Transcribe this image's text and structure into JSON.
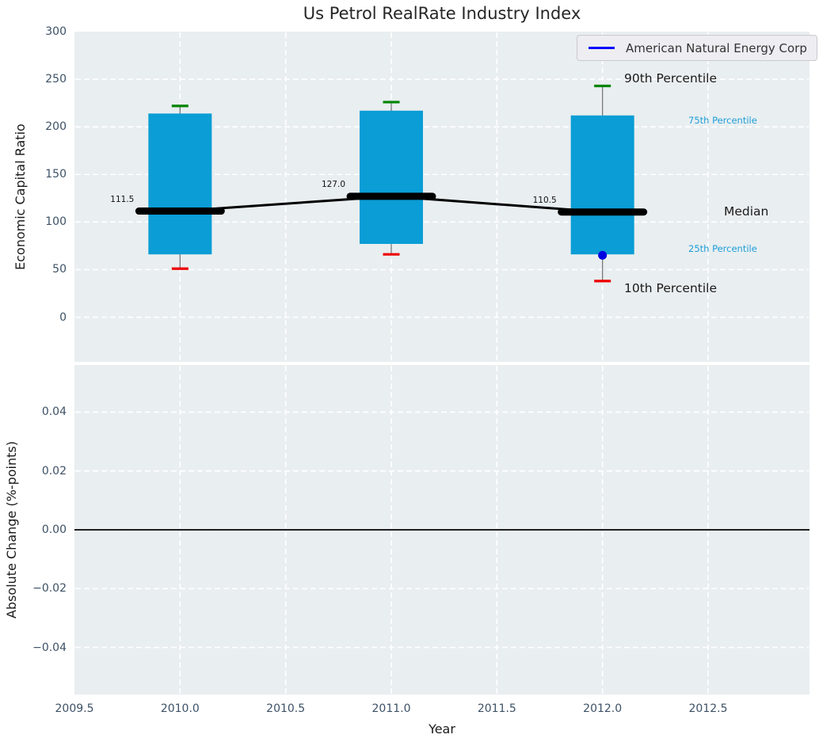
{
  "title": "Us Petrol RealRate Industry Index",
  "legend": {
    "label": "American Natural Energy Corp",
    "line_color": "#0000ff"
  },
  "annotations": {
    "p90_label": "90th Percentile",
    "p75_label": "75th Percentile",
    "median_label": "Median",
    "p25_label": "25th Percentile",
    "p10_label": "10th Percentile"
  },
  "colors": {
    "axes_background": "#e9eef0",
    "grid": "#ffffff",
    "box_fill": "#0a9dd6",
    "whisker": "#787878",
    "cap_high": "#008500",
    "cap_low": "#ee0000",
    "median_line": "#000000",
    "company_point": "#0000e0",
    "tick_label": "#3d5166",
    "accent_text": "#1d9fd8"
  },
  "chart_data": [
    {
      "type": "box",
      "title": "Us Petrol RealRate Industry Index",
      "xlabel": "Year",
      "ylabel": "Economic Capital Ratio",
      "xlim": [
        2009.5,
        2012.98
      ],
      "ylim": [
        -47,
        300
      ],
      "xticks": [
        2009.5,
        2010.0,
        2010.5,
        2011.0,
        2011.5,
        2012.0,
        2012.5
      ],
      "yticks": [
        0,
        50,
        100,
        150,
        200,
        250,
        300
      ],
      "grid": true,
      "legend_position": "upper right",
      "legend_entries": [
        "American Natural Energy Corp"
      ],
      "series": [
        {
          "year": 2010,
          "p10": 51,
          "p25": 66,
          "median": 111.5,
          "p75": 214,
          "p90": 222
        },
        {
          "year": 2011,
          "p10": 66,
          "p25": 77,
          "median": 127.0,
          "p75": 217,
          "p90": 226
        },
        {
          "year": 2012,
          "p10": 38,
          "p25": 66,
          "median": 110.5,
          "p75": 212,
          "p90": 243
        }
      ],
      "company_point": {
        "year": 2012,
        "value": 65
      }
    },
    {
      "type": "line",
      "xlabel": "Year",
      "ylabel": "Absolute Change (%-points)",
      "xlim": [
        2009.5,
        2012.98
      ],
      "ylim": [
        -0.056,
        0.056
      ],
      "xticks": [
        2009.5,
        2010.0,
        2010.5,
        2011.0,
        2011.5,
        2012.0,
        2012.5
      ],
      "yticks": [
        0.04,
        0.02,
        0.0,
        -0.02,
        -0.04
      ],
      "grid": true,
      "zero_line": 0.0,
      "series": []
    }
  ]
}
